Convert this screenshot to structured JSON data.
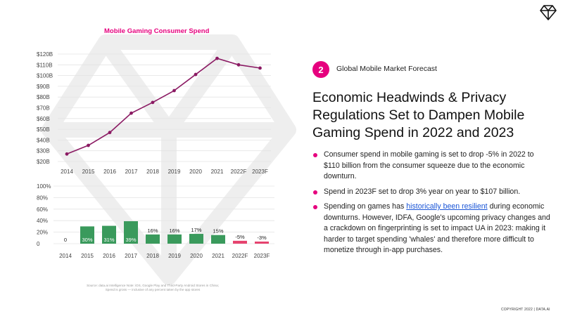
{
  "colors": {
    "accent": "#e6007e",
    "line": "#8b1a63",
    "bar_positive": "#3a9a5c",
    "bar_negative": "#e6436f",
    "link": "#1a55d6"
  },
  "logo_icon": "diamond-icon",
  "chart_data": [
    {
      "type": "line",
      "title": "Mobile Gaming Consumer Spend",
      "categories": [
        "2014",
        "2015",
        "2016",
        "2017",
        "2018",
        "2019",
        "2020",
        "2021",
        "2022F",
        "2023F"
      ],
      "values": [
        27,
        35,
        47,
        65,
        75,
        86,
        101,
        116,
        110,
        107
      ],
      "ylim": [
        20,
        120
      ],
      "yticks": [
        "$20B",
        "$30B",
        "$40B",
        "$50B",
        "$60B",
        "$70B",
        "$80B",
        "$90B",
        "$100B",
        "$110B",
        "$120B"
      ],
      "grid": true
    },
    {
      "type": "bar",
      "categories": [
        "2014",
        "2015",
        "2016",
        "2017",
        "2018",
        "2019",
        "2020",
        "2021",
        "2022F",
        "2023F"
      ],
      "values": [
        0,
        30,
        31,
        39,
        16,
        16,
        17,
        15,
        -5,
        -3
      ],
      "labels": [
        "0",
        "30%",
        "31%",
        "39%",
        "16%",
        "16%",
        "17%",
        "15%",
        "-5%",
        "-3%"
      ],
      "ylim": [
        0,
        100
      ],
      "yticks": [
        "0",
        "20%",
        "40%",
        "60%",
        "80%",
        "100%"
      ],
      "grid": true
    }
  ],
  "source_note": "Source: data.ai Intelligence Note: iOS, Google Play and Third-Party Android Stores in China; Spend is gross — inclusive of any percent taken by the app stores",
  "section": {
    "number": "2",
    "label": "Global Mobile Market Forecast"
  },
  "headline": "Economic Headwinds & Privacy Regulations Set to Dampen Mobile Gaming Spend in 2022 and 2023",
  "bullets": [
    {
      "text": "Consumer spend in mobile gaming is set to drop -5% in 2022 to $110 billion from the consumer squeeze due to the economic downturn."
    },
    {
      "text": "Spend in 2023F set to drop 3% year on year to $107 billion."
    },
    {
      "before": "Spending on games has ",
      "link": "historically been resilient",
      "after": " during economic downturns. However, IDFA, Google's upcoming privacy changes and a crackdown on fingerprinting is set to impact UA in 2023: making it harder to target spending 'whales' and therefore more difficult to monetize through in-app purchases."
    }
  ],
  "copyright": "COPYRIGHT 2022 | DATA.AI"
}
